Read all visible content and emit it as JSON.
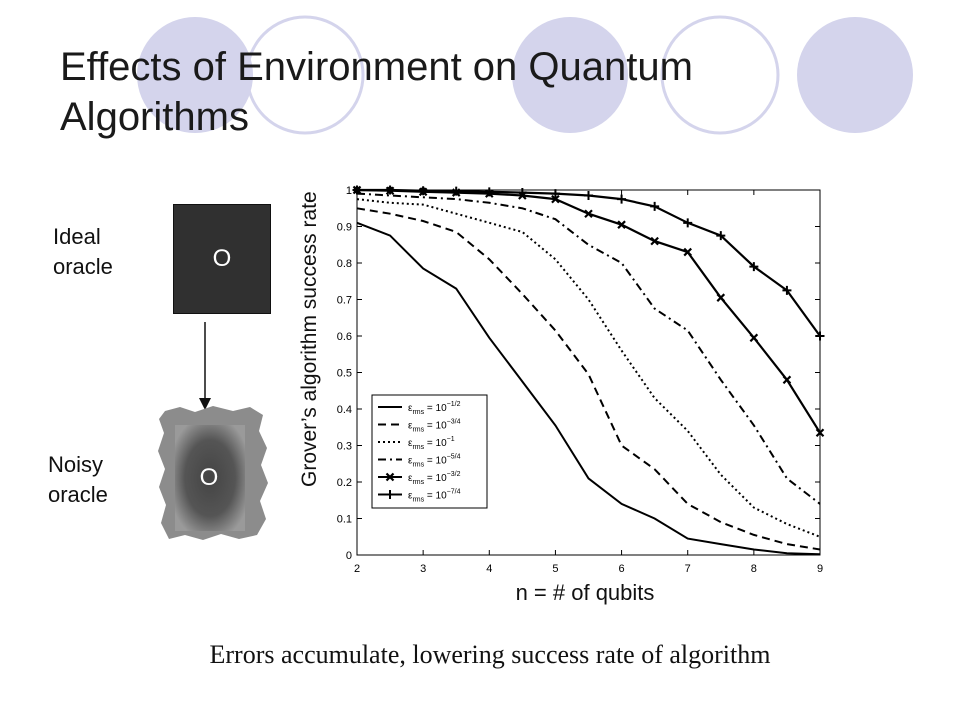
{
  "slide": {
    "title": "Effects of Environment on Quantum Algorithms",
    "caption": "Errors accumulate, lowering success rate of algorithm",
    "decor_color_fill": "#d4d4ec",
    "decor_color_stroke": "#d4d4ec"
  },
  "oracles": {
    "ideal_label": "Ideal oracle",
    "ideal_symbol": "O",
    "noisy_label": "Noisy oracle",
    "noisy_symbol": "O"
  },
  "chart_data": {
    "type": "line",
    "xlabel": "n = # of qubits",
    "ylabel": "Grover’s algorithm success rate",
    "xlim": [
      2,
      9
    ],
    "ylim": [
      0,
      1
    ],
    "xticks": [
      "2",
      "3",
      "4",
      "5",
      "6",
      "7",
      "8",
      "9"
    ],
    "yticks": [
      "0",
      "0.1",
      "0.2",
      "0.3",
      "0.4",
      "0.5",
      "0.6",
      "0.7",
      "0.8",
      "0.9",
      "1"
    ],
    "legend_position": "bottom-left",
    "x": [
      2,
      2.5,
      3,
      3.5,
      4,
      4.5,
      5,
      5.5,
      6,
      6.5,
      7,
      7.5,
      8,
      8.5,
      9
    ],
    "series": [
      {
        "name": "ε_rms = 10^-1/2",
        "legend_sym": "ε",
        "legend_sub": "rms",
        "legend_base": " = 10",
        "legend_exp": "−1/2",
        "dash": "",
        "marker": "none",
        "values": [
          0.91,
          0.875,
          0.785,
          0.73,
          0.595,
          0.475,
          0.355,
          0.21,
          0.14,
          0.1,
          0.045,
          0.03,
          0.015,
          0.005,
          0.002
        ]
      },
      {
        "name": "ε_rms = 10^-3/4",
        "legend_sym": "ε",
        "legend_sub": "rms",
        "legend_base": " = 10",
        "legend_exp": "−3/4",
        "dash": "8,5",
        "marker": "none",
        "values": [
          0.95,
          0.935,
          0.915,
          0.885,
          0.81,
          0.715,
          0.615,
          0.495,
          0.3,
          0.235,
          0.14,
          0.09,
          0.055,
          0.03,
          0.015
        ]
      },
      {
        "name": "ε_rms = 10^-1",
        "legend_sym": "ε",
        "legend_sub": "rms",
        "legend_base": " = 10",
        "legend_exp": "−1",
        "dash": "2,3",
        "marker": "none",
        "values": [
          0.975,
          0.965,
          0.96,
          0.935,
          0.91,
          0.885,
          0.81,
          0.7,
          0.56,
          0.43,
          0.34,
          0.22,
          0.13,
          0.085,
          0.05
        ]
      },
      {
        "name": "ε_rms = 10^-5/4",
        "legend_sym": "ε",
        "legend_sub": "rms",
        "legend_base": " = 10",
        "legend_exp": "−5/4",
        "dash": "8,4,2,4",
        "marker": "none",
        "values": [
          0.99,
          0.985,
          0.98,
          0.975,
          0.965,
          0.95,
          0.92,
          0.85,
          0.8,
          0.675,
          0.615,
          0.48,
          0.355,
          0.21,
          0.14
        ]
      },
      {
        "name": "ε_rms = 10^-3/2",
        "legend_sym": "ε",
        "legend_sub": "rms",
        "legend_base": " = 10",
        "legend_exp": "−3/2",
        "dash": "",
        "marker": "x",
        "values": [
          1.0,
          0.998,
          0.995,
          0.993,
          0.99,
          0.985,
          0.975,
          0.935,
          0.905,
          0.86,
          0.83,
          0.705,
          0.595,
          0.48,
          0.335
        ]
      },
      {
        "name": "ε_rms = 10^-7/4",
        "legend_sym": "ε",
        "legend_sub": "rms",
        "legend_base": " = 10",
        "legend_exp": "−7/4",
        "dash": "",
        "marker": "plus",
        "values": [
          1.0,
          1.0,
          0.998,
          0.997,
          0.995,
          0.993,
          0.99,
          0.985,
          0.975,
          0.955,
          0.91,
          0.875,
          0.79,
          0.725,
          0.6
        ]
      }
    ]
  }
}
